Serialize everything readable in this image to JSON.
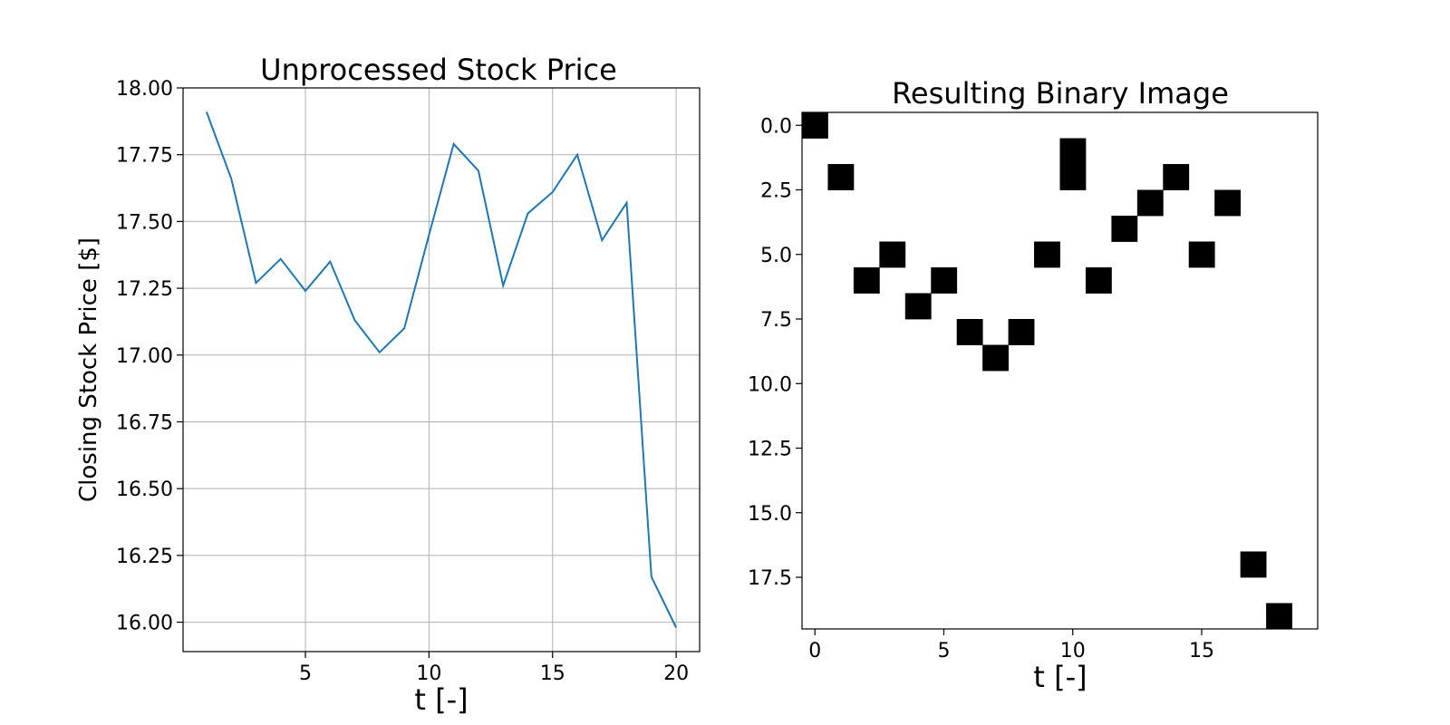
{
  "chart_data": [
    {
      "type": "line",
      "title": "Unprocessed Stock Price",
      "xlabel": "t [-]",
      "ylabel": "Closing Stock Price [$]",
      "grid": true,
      "xlim": [
        0.05,
        20.95
      ],
      "ylim": [
        15.89,
        18.0
      ],
      "xticks": [
        5,
        10,
        15,
        20
      ],
      "yticks": [
        16.0,
        16.25,
        16.5,
        16.75,
        17.0,
        17.25,
        17.5,
        17.75,
        18.0
      ],
      "ytick_labels": [
        "16.00",
        "16.25",
        "16.50",
        "16.75",
        "17.00",
        "17.25",
        "17.50",
        "17.75",
        "18.00"
      ],
      "color": "#1f77b4",
      "series": [
        {
          "x": [
            1,
            2,
            3,
            4,
            5,
            6,
            7,
            8,
            9,
            10,
            11,
            12,
            13,
            14,
            15,
            16,
            17,
            18,
            19,
            20
          ],
          "values": [
            17.91,
            17.66,
            17.27,
            17.36,
            17.24,
            17.35,
            17.13,
            17.01,
            17.1,
            17.45,
            17.79,
            17.69,
            17.26,
            17.53,
            17.61,
            17.75,
            17.43,
            17.57,
            16.17,
            15.98
          ]
        }
      ]
    },
    {
      "type": "heatmap",
      "title": "Resulting Binary Image",
      "xlabel": "t [-]",
      "ylabel": "",
      "xlim": [
        -0.5,
        19.5
      ],
      "ylim": [
        19.5,
        -0.5
      ],
      "xticks": [
        0,
        5,
        10,
        15
      ],
      "yticks": [
        0.0,
        2.5,
        5.0,
        7.5,
        10.0,
        12.5,
        15.0,
        17.5
      ],
      "ytick_labels": [
        "0.0",
        "2.5",
        "5.0",
        "7.5",
        "10.0",
        "12.5",
        "15.0",
        "17.5"
      ],
      "colormap": [
        "#ffffff",
        "#000000"
      ],
      "filled_cells": [
        [
          0,
          0
        ],
        [
          1,
          2
        ],
        [
          2,
          6
        ],
        [
          3,
          5
        ],
        [
          4,
          7
        ],
        [
          5,
          6
        ],
        [
          6,
          8
        ],
        [
          7,
          9
        ],
        [
          8,
          8
        ],
        [
          9,
          5
        ],
        [
          10,
          1
        ],
        [
          10,
          2
        ],
        [
          11,
          6
        ],
        [
          12,
          4
        ],
        [
          13,
          3
        ],
        [
          14,
          2
        ],
        [
          15,
          5
        ],
        [
          16,
          3
        ],
        [
          17,
          17
        ],
        [
          18,
          19
        ]
      ]
    }
  ]
}
